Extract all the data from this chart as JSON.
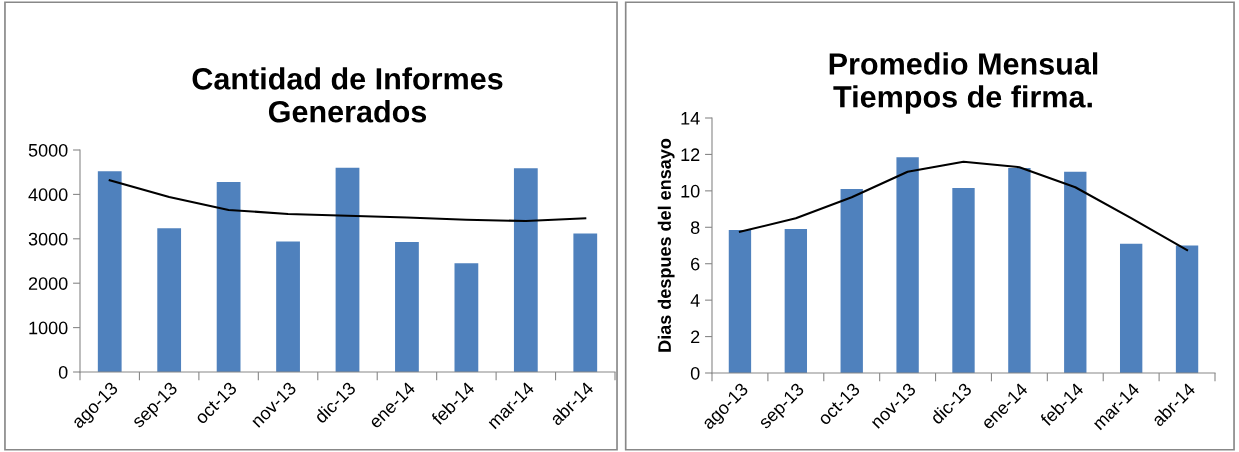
{
  "chart_data": [
    {
      "type": "bar",
      "title": "Cantidad de Informes\nGenerados",
      "categories": [
        "ago-13",
        "sep-13",
        "oct-13",
        "nov-13",
        "dic-13",
        "ene-14",
        "feb-14",
        "mar-14",
        "abr-14"
      ],
      "series": [
        {
          "color": "#4f81bd",
          "values": [
            4520,
            3240,
            4280,
            2940,
            4600,
            2930,
            2450,
            4590,
            3120
          ]
        },
        {
          "type": "line",
          "color": "#000000",
          "values": [
            4320,
            3940,
            3650,
            3560,
            3520,
            3480,
            3430,
            3400,
            3460
          ]
        }
      ],
      "ylim": [
        0,
        5000
      ],
      "yticks": [
        0,
        1000,
        2000,
        3000,
        4000,
        5000
      ],
      "grid": false,
      "legend": false
    },
    {
      "type": "bar",
      "title": "Promedio Mensual\nTiempos de firma.",
      "ylabel": "Dias despues del ensayo",
      "categories": [
        "ago-13",
        "sep-13",
        "oct-13",
        "nov-13",
        "dic-13",
        "ene-14",
        "feb-14",
        "mar-14",
        "abr-14"
      ],
      "series": [
        {
          "color": "#4f81bd",
          "values": [
            7.85,
            7.9,
            10.1,
            11.85,
            10.15,
            11.25,
            11.05,
            7.1,
            7.0
          ]
        },
        {
          "type": "line",
          "color": "#000000",
          "values": [
            7.75,
            8.5,
            9.65,
            11.05,
            11.6,
            11.3,
            10.2,
            8.5,
            6.75
          ]
        }
      ],
      "ylim": [
        0,
        14
      ],
      "yticks": [
        0,
        2,
        4,
        6,
        8,
        10,
        12,
        14
      ],
      "grid": false,
      "legend": false
    }
  ]
}
